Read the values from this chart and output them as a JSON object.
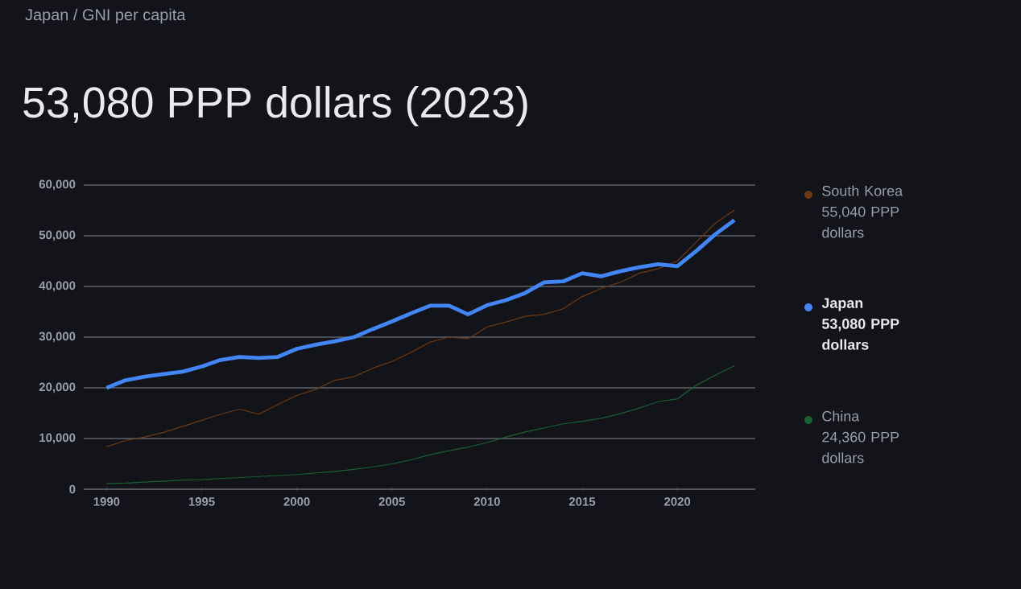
{
  "chart_data": {
    "type": "line",
    "subtitle": "Japan / GNI per capita",
    "title": "53,080 PPP dollars (2023)",
    "x": [
      1990,
      1991,
      1992,
      1993,
      1994,
      1995,
      1996,
      1997,
      1998,
      1999,
      2000,
      2001,
      2002,
      2003,
      2004,
      2005,
      2006,
      2007,
      2008,
      2009,
      2010,
      2011,
      2012,
      2013,
      2014,
      2015,
      2016,
      2017,
      2018,
      2019,
      2020,
      2021,
      2022,
      2023
    ],
    "series": [
      {
        "name": "South Korea",
        "color": "#6b3a16",
        "values": [
          8400,
          9600,
          10300,
          11200,
          12400,
          13600,
          14800,
          15800,
          14800,
          16700,
          18500,
          19700,
          21500,
          22200,
          23900,
          25200,
          27000,
          29000,
          30000,
          29700,
          32000,
          33000,
          34100,
          34500,
          35600,
          38000,
          39600,
          40800,
          42600,
          43500,
          45000,
          48800,
          52500,
          55040
        ]
      },
      {
        "name": "Japan",
        "color": "#4285f4",
        "values": [
          20000,
          21500,
          22200,
          22700,
          23200,
          24200,
          25500,
          26100,
          25900,
          26100,
          27700,
          28500,
          29200,
          30000,
          31600,
          33100,
          34700,
          36200,
          36200,
          34500,
          36300,
          37300,
          38700,
          40800,
          41000,
          42600,
          42000,
          43000,
          43800,
          44400,
          44000,
          47000,
          50300,
          53080
        ]
      },
      {
        "name": "China",
        "color": "#1e5e34",
        "values": [
          1100,
          1200,
          1400,
          1600,
          1800,
          1900,
          2100,
          2300,
          2500,
          2700,
          2900,
          3200,
          3500,
          3900,
          4400,
          5000,
          5800,
          6800,
          7600,
          8300,
          9200,
          10300,
          11300,
          12100,
          12900,
          13400,
          14000,
          14900,
          16000,
          17300,
          17800,
          20500,
          22500,
          24360
        ]
      }
    ],
    "annotations": [
      "55,040 PPP dollars",
      "53,080 PPP dollars",
      "24,360 PPP dollars"
    ],
    "xlim": [
      1988.8,
      2024.1
    ],
    "ylim": [
      0,
      60000
    ],
    "xticks": [
      1990,
      1995,
      2000,
      2005,
      2010,
      2015,
      2020
    ],
    "yticks": [
      0,
      {
        "value": 10000,
        "label": "10,000"
      },
      {
        "value": 20000,
        "label": "20,000"
      },
      {
        "value": 30000,
        "label": "30,000"
      },
      {
        "value": 40000,
        "label": "40,000"
      },
      {
        "value": 50000,
        "label": "50,000"
      },
      {
        "value": 60000,
        "label": "60,000"
      }
    ],
    "grid": "y",
    "legend": "right"
  }
}
